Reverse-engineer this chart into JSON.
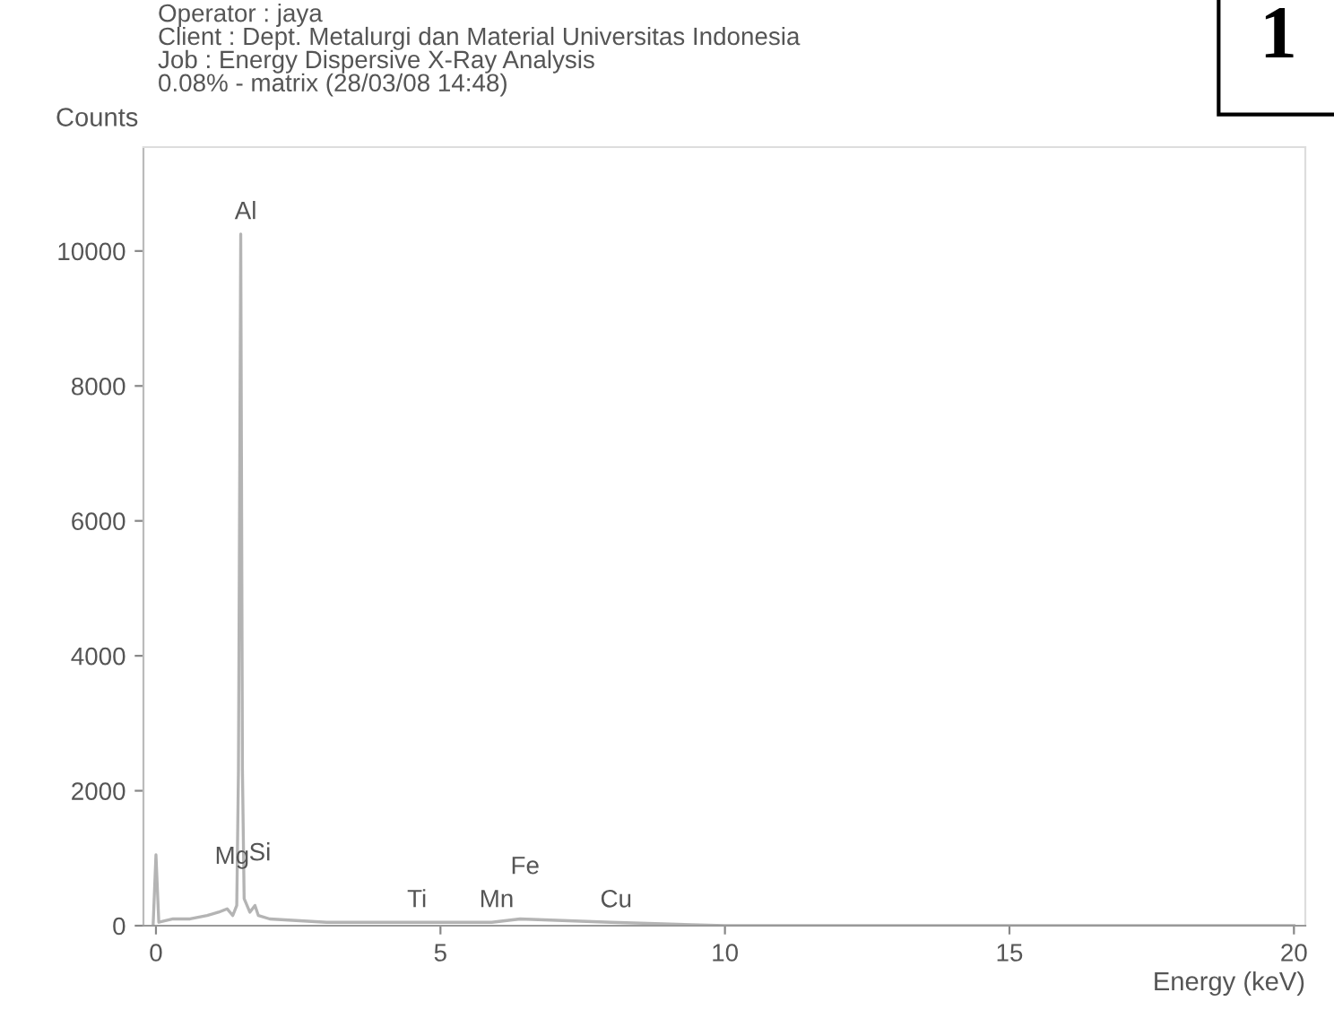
{
  "chart_data": {
    "type": "line",
    "title": "1",
    "subtitle": "Operator : jaya\nClient : Dept. Metalurgi dan Material Universitas Indonesia\nJob : Energy Dispersive X-Ray Analysis\n0.08% - matrix (28/03/08 14:48)",
    "xlabel": "Energy (keV)",
    "ylabel": "Counts",
    "series": [
      {
        "color": "#b4b4b4",
        "x": [
          -0.05,
          0.0,
          0.05,
          0.3,
          0.6,
          0.9,
          1.1,
          1.25,
          1.35,
          1.42,
          1.45,
          1.49,
          1.52,
          1.55,
          1.65,
          1.74,
          1.8,
          2.0,
          3.0,
          4.0,
          4.5,
          5.0,
          5.9,
          6.4,
          8.0,
          10.0,
          15.0,
          20.0
        ],
        "values": [
          0,
          1050,
          50,
          100,
          100,
          150,
          200,
          250,
          150,
          300,
          2300,
          10250,
          2300,
          400,
          200,
          300,
          150,
          100,
          50,
          50,
          50,
          50,
          50,
          100,
          50,
          0,
          0,
          0
        ]
      }
    ],
    "annotations": [
      {
        "text": "Al",
        "x": 1.49,
        "y": 10250
      },
      {
        "text": "Si",
        "x": 1.74,
        "y": 300
      },
      {
        "text": "Mg",
        "x": 1.25,
        "y": 250
      },
      {
        "text": "Ti",
        "x": 4.5,
        "y": 50
      },
      {
        "text": "Mn",
        "x": 5.9,
        "y": 50
      },
      {
        "text": "Fe",
        "x": 6.4,
        "y": 100
      },
      {
        "text": "Cu",
        "x": 8.0,
        "y": 50
      }
    ],
    "xlim": [
      -0.22,
      20.2
    ],
    "ylim": [
      0,
      11540
    ],
    "xticks": [
      0,
      5,
      10,
      15,
      20
    ],
    "yticks": [
      0,
      2000,
      4000,
      6000,
      8000,
      10000
    ],
    "grid": false,
    "legend": false
  }
}
